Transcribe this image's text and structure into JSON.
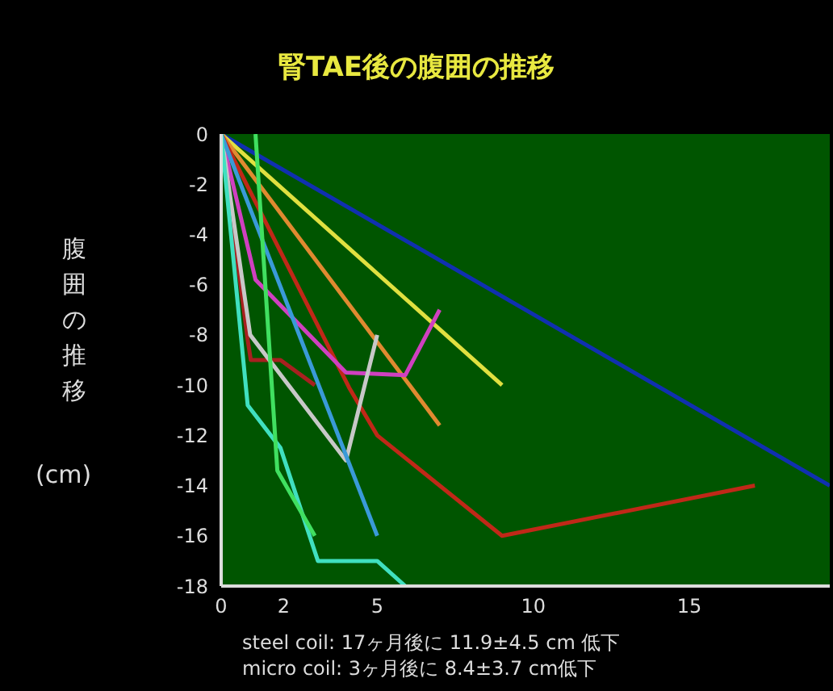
{
  "chart_data": {
    "type": "line",
    "title": "腎TAE後の腹囲の推移",
    "ylabel": "腹囲の推移 (cm)",
    "xlim": [
      0,
      19.5
    ],
    "xticks": [
      0,
      2,
      5,
      10,
      15
    ],
    "ylim": [
      -18,
      0
    ],
    "yticks": [
      0,
      -2,
      -4,
      -6,
      -8,
      -10,
      -12,
      -14,
      -16,
      -18
    ],
    "grid": false,
    "marker": "none",
    "line_style": "solid",
    "annotations": [
      "steel coil: 17ヶ月後に 11.9±4.5 cm 低下",
      "micro coil: 3ヶ月後に 8.4±3.7 cm低下"
    ],
    "series": [
      {
        "color": "#1030b0",
        "x": [
          0,
          19.5
        ],
        "values": [
          0,
          -14
        ]
      },
      {
        "color": "#e0e040",
        "x": [
          0,
          9
        ],
        "values": [
          0,
          -10
        ]
      },
      {
        "color": "#e08a30",
        "x": [
          0,
          7
        ],
        "values": [
          0,
          -11.6
        ]
      },
      {
        "color": "#c02818",
        "x": [
          0,
          4.1,
          5,
          9,
          17.1
        ],
        "values": [
          0,
          -10.1,
          -12,
          -16,
          -14
        ]
      },
      {
        "color": "#a82020",
        "x": [
          0,
          0.85,
          0.95,
          1.9,
          3
        ],
        "values": [
          0,
          -8.2,
          -9,
          -9,
          -10
        ]
      },
      {
        "color": "#d040c0",
        "x": [
          0,
          1.1,
          4,
          5.9,
          7
        ],
        "values": [
          0,
          -5.8,
          -9.5,
          -9.6,
          -7
        ]
      },
      {
        "color": "#c8c8c8",
        "x": [
          0,
          0.93,
          4,
          5
        ],
        "values": [
          0,
          -8,
          -13,
          -8
        ]
      },
      {
        "color": "#3a9ad8",
        "x": [
          0,
          5
        ],
        "values": [
          0,
          -16
        ]
      },
      {
        "color": "#40e0c0",
        "x": [
          0,
          0.85,
          1.9,
          3.1,
          5,
          5.9
        ],
        "values": [
          0,
          -10.8,
          -12.5,
          -17,
          -17,
          -18
        ]
      },
      {
        "color": "#40e060",
        "x": [
          1.1,
          1.8,
          3
        ],
        "values": [
          0,
          -13.4,
          -16
        ]
      }
    ]
  }
}
